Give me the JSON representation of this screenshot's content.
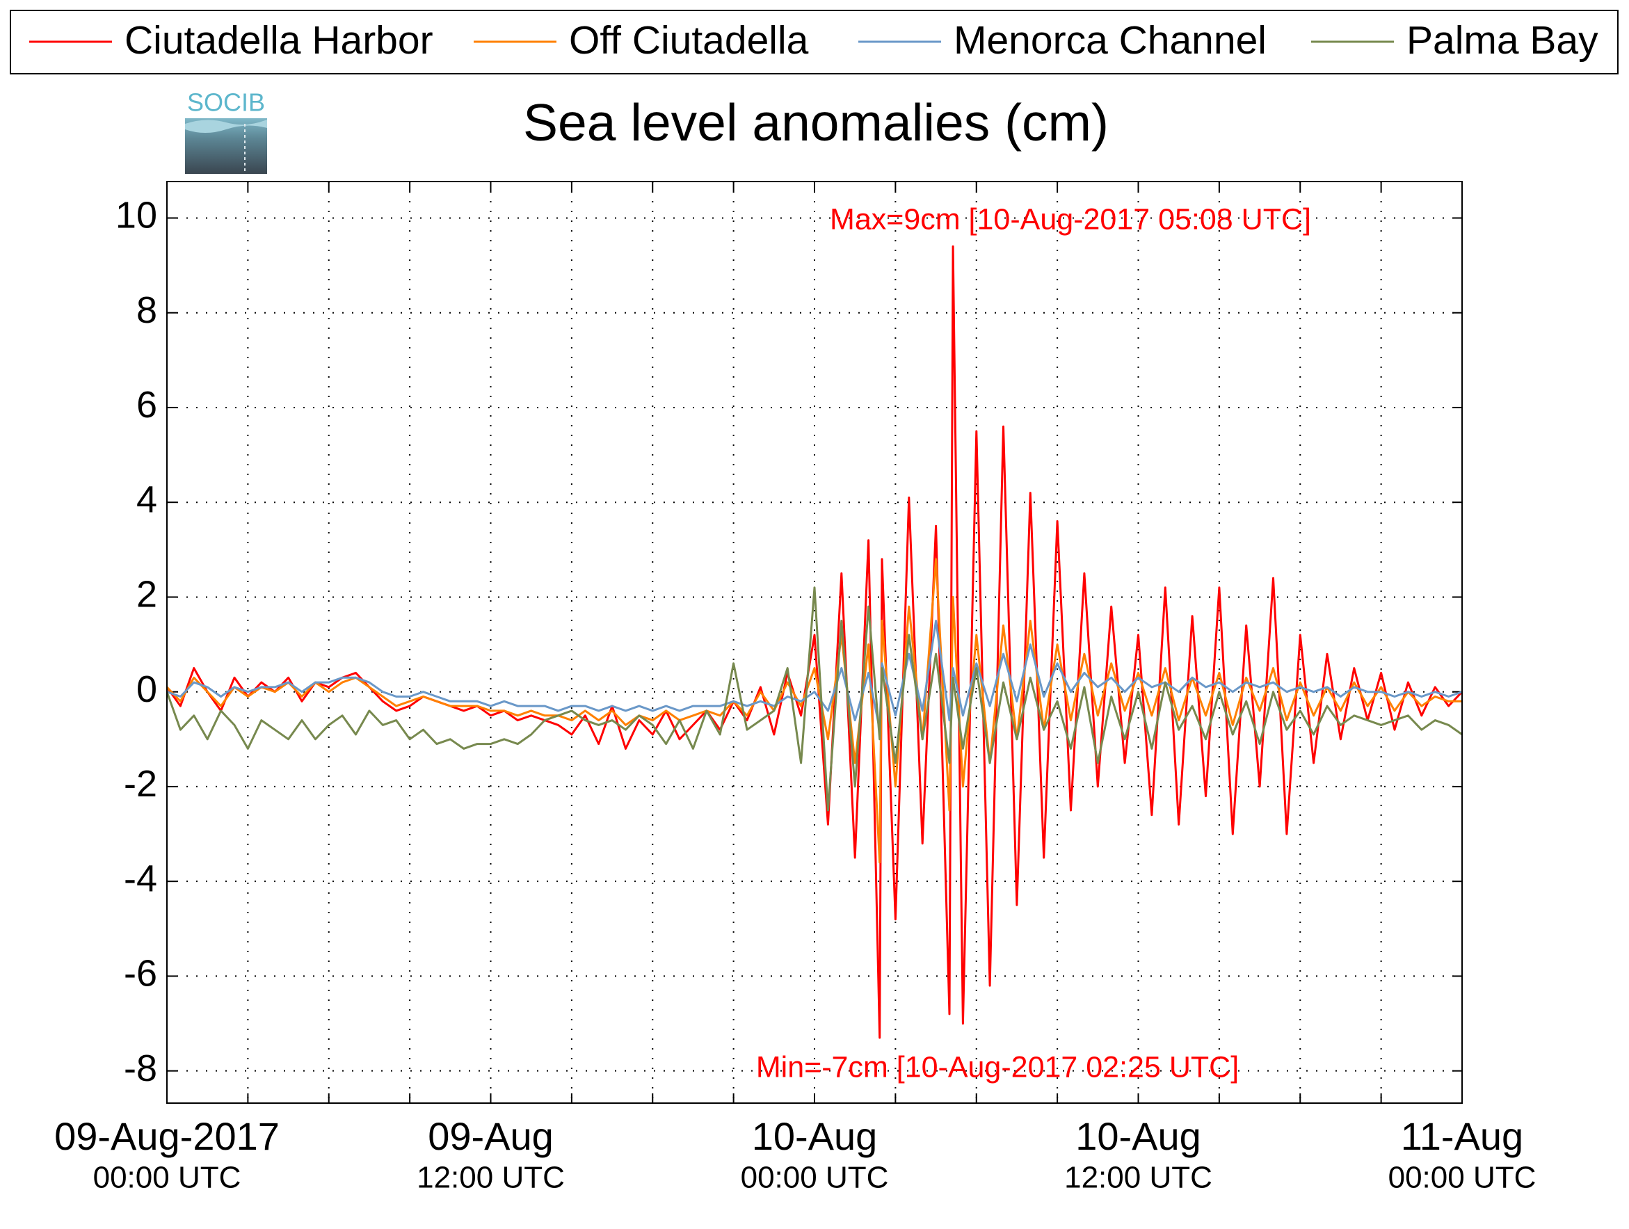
{
  "chart_data": {
    "type": "line",
    "title": "Sea level anomalies (cm)",
    "logo": "SOCIB",
    "annotations": [
      "Max=9cm [10-Aug-2017 05:08 UTC]",
      "Min=-7cm [10-Aug-2017 02:25 UTC]"
    ],
    "annotation_color": "#ff0000",
    "grid": true,
    "legend": "top",
    "xlim": [
      "2017-08-09T00:00",
      "2017-08-11T00:00"
    ],
    "xticks": [
      {
        "value": "2017-08-09T00:00",
        "label": "09-Aug-2017",
        "sublabel": "00:00 UTC"
      },
      "2017-08-09T03:00",
      "2017-08-09T06:00",
      "2017-08-09T09:00",
      {
        "value": "2017-08-09T12:00",
        "label": "09-Aug",
        "sublabel": "12:00 UTC"
      },
      "2017-08-09T15:00",
      "2017-08-09T18:00",
      "2017-08-09T21:00",
      {
        "value": "2017-08-10T00:00",
        "label": "10-Aug",
        "sublabel": "00:00 UTC"
      },
      "2017-08-10T03:00",
      "2017-08-10T06:00",
      "2017-08-10T09:00",
      {
        "value": "2017-08-10T12:00",
        "label": "10-Aug",
        "sublabel": "12:00 UTC"
      },
      "2017-08-10T15:00",
      "2017-08-10T18:00",
      "2017-08-10T21:00",
      {
        "value": "2017-08-11T00:00",
        "label": "11-Aug",
        "sublabel": "00:00 UTC"
      }
    ],
    "ylim": [
      -8.68,
      10.77
    ],
    "yticks": [
      -8,
      -6,
      -4,
      -2,
      0,
      2,
      4,
      6,
      8,
      10
    ],
    "x": [
      "2017-08-09T00:00",
      "2017-08-09T00:30",
      "2017-08-09T01:00",
      "2017-08-09T01:30",
      "2017-08-09T02:00",
      "2017-08-09T02:30",
      "2017-08-09T03:00",
      "2017-08-09T03:30",
      "2017-08-09T04:00",
      "2017-08-09T04:30",
      "2017-08-09T05:00",
      "2017-08-09T05:30",
      "2017-08-09T06:00",
      "2017-08-09T06:30",
      "2017-08-09T07:00",
      "2017-08-09T07:30",
      "2017-08-09T08:00",
      "2017-08-09T08:30",
      "2017-08-09T09:00",
      "2017-08-09T09:30",
      "2017-08-09T10:00",
      "2017-08-09T10:30",
      "2017-08-09T11:00",
      "2017-08-09T11:30",
      "2017-08-09T12:00",
      "2017-08-09T12:30",
      "2017-08-09T13:00",
      "2017-08-09T13:30",
      "2017-08-09T14:00",
      "2017-08-09T14:30",
      "2017-08-09T15:00",
      "2017-08-09T15:30",
      "2017-08-09T16:00",
      "2017-08-09T16:30",
      "2017-08-09T17:00",
      "2017-08-09T17:30",
      "2017-08-09T18:00",
      "2017-08-09T18:30",
      "2017-08-09T19:00",
      "2017-08-09T19:30",
      "2017-08-09T20:00",
      "2017-08-09T20:30",
      "2017-08-09T21:00",
      "2017-08-09T21:30",
      "2017-08-09T22:00",
      "2017-08-09T22:30",
      "2017-08-09T23:00",
      "2017-08-09T23:30",
      "2017-08-10T00:00",
      "2017-08-10T00:30",
      "2017-08-10T01:00",
      "2017-08-10T01:30",
      "2017-08-10T02:00",
      "2017-08-10T02:25",
      "2017-08-10T02:30",
      "2017-08-10T03:00",
      "2017-08-10T03:30",
      "2017-08-10T04:00",
      "2017-08-10T04:30",
      "2017-08-10T05:00",
      "2017-08-10T05:08",
      "2017-08-10T05:30",
      "2017-08-10T06:00",
      "2017-08-10T06:30",
      "2017-08-10T07:00",
      "2017-08-10T07:30",
      "2017-08-10T08:00",
      "2017-08-10T08:30",
      "2017-08-10T09:00",
      "2017-08-10T09:30",
      "2017-08-10T10:00",
      "2017-08-10T10:30",
      "2017-08-10T11:00",
      "2017-08-10T11:30",
      "2017-08-10T12:00",
      "2017-08-10T12:30",
      "2017-08-10T13:00",
      "2017-08-10T13:30",
      "2017-08-10T14:00",
      "2017-08-10T14:30",
      "2017-08-10T15:00",
      "2017-08-10T15:30",
      "2017-08-10T16:00",
      "2017-08-10T16:30",
      "2017-08-10T17:00",
      "2017-08-10T17:30",
      "2017-08-10T18:00",
      "2017-08-10T18:30",
      "2017-08-10T19:00",
      "2017-08-10T19:30",
      "2017-08-10T20:00",
      "2017-08-10T20:30",
      "2017-08-10T21:00",
      "2017-08-10T21:30",
      "2017-08-10T22:00",
      "2017-08-10T22:30",
      "2017-08-10T23:00",
      "2017-08-10T23:30",
      "2017-08-11T00:00"
    ],
    "series": [
      {
        "name": "Ciutadella Harbor",
        "color": "#ff0000",
        "values": [
          0.1,
          -0.3,
          0.5,
          0,
          -0.4,
          0.3,
          -0.1,
          0.2,
          0,
          0.3,
          -0.2,
          0.2,
          0.1,
          0.3,
          0.4,
          0.1,
          -0.2,
          -0.4,
          -0.3,
          -0.1,
          -0.2,
          -0.3,
          -0.4,
          -0.3,
          -0.5,
          -0.4,
          -0.6,
          -0.5,
          -0.6,
          -0.7,
          -0.9,
          -0.5,
          -1.1,
          -0.3,
          -1.2,
          -0.6,
          -0.9,
          -0.4,
          -1.0,
          -0.7,
          -0.4,
          -0.8,
          -0.2,
          -0.6,
          0.1,
          -0.9,
          0.4,
          -0.5,
          1.2,
          -2.8,
          2.5,
          -3.5,
          3.2,
          -7.3,
          2.8,
          -4.8,
          4.1,
          -3.2,
          3.5,
          -6.8,
          9.4,
          -7.0,
          5.5,
          -6.2,
          5.6,
          -4.5,
          4.2,
          -3.5,
          3.6,
          -2.5,
          2.5,
          -2.0,
          1.8,
          -1.5,
          1.2,
          -2.6,
          2.2,
          -2.8,
          1.6,
          -2.2,
          2.2,
          -3.0,
          1.4,
          -2.0,
          2.4,
          -3.0,
          1.2,
          -1.5,
          0.8,
          -1.0,
          0.5,
          -0.6,
          0.4,
          -0.8,
          0.2,
          -0.5,
          0.1,
          -0.3,
          0
        ]
      },
      {
        "name": "Off Ciutadella",
        "color": "#ff8000",
        "values": [
          0.1,
          -0.2,
          0.3,
          0,
          -0.3,
          0.1,
          -0.1,
          0.1,
          0,
          0.2,
          -0.1,
          0.2,
          0,
          0.2,
          0.3,
          0.1,
          -0.1,
          -0.3,
          -0.2,
          -0.1,
          -0.2,
          -0.3,
          -0.3,
          -0.3,
          -0.4,
          -0.4,
          -0.5,
          -0.4,
          -0.5,
          -0.5,
          -0.6,
          -0.4,
          -0.6,
          -0.4,
          -0.7,
          -0.5,
          -0.6,
          -0.4,
          -0.6,
          -0.5,
          -0.4,
          -0.5,
          -0.2,
          -0.5,
          0,
          -0.4,
          0.2,
          -0.3,
          0.5,
          -1.0,
          1.2,
          -1.5,
          1.0,
          -3.6,
          1.5,
          -2.0,
          1.8,
          -1.0,
          2.8,
          -2.5,
          2.0,
          -2.0,
          1.2,
          -1.5,
          1.4,
          -1.0,
          1.5,
          -0.8,
          1.0,
          -0.6,
          0.8,
          -0.5,
          0.6,
          -0.4,
          0.4,
          -0.5,
          0.5,
          -0.6,
          0.3,
          -0.5,
          0.4,
          -0.7,
          0.3,
          -0.4,
          0.5,
          -0.6,
          0.2,
          -0.5,
          0.1,
          -0.4,
          0.2,
          -0.3,
          0.1,
          -0.4,
          0,
          -0.3,
          -0.1,
          -0.2,
          -0.2
        ]
      },
      {
        "name": "Menorca Channel",
        "color": "#6a98c8",
        "values": [
          0,
          -0.1,
          0.2,
          0.1,
          -0.1,
          0.1,
          0,
          0.1,
          0.1,
          0.2,
          0,
          0.2,
          0.2,
          0.3,
          0.3,
          0.2,
          0,
          -0.1,
          -0.1,
          0,
          -0.1,
          -0.2,
          -0.2,
          -0.2,
          -0.3,
          -0.2,
          -0.3,
          -0.3,
          -0.3,
          -0.4,
          -0.3,
          -0.3,
          -0.4,
          -0.3,
          -0.4,
          -0.3,
          -0.4,
          -0.3,
          -0.4,
          -0.3,
          -0.3,
          -0.3,
          -0.2,
          -0.3,
          -0.2,
          -0.3,
          -0.1,
          -0.2,
          0,
          -0.4,
          0.5,
          -0.6,
          0.4,
          -0.8,
          0.6,
          -0.5,
          0.8,
          -0.4,
          1.5,
          -0.6,
          0.5,
          -0.5,
          0.6,
          -0.3,
          0.8,
          -0.2,
          1.0,
          -0.1,
          0.6,
          0,
          0.4,
          0.1,
          0.3,
          0,
          0.3,
          0.1,
          0.2,
          0,
          0.3,
          0.1,
          0.2,
          0,
          0.2,
          0.1,
          0.2,
          0,
          0.1,
          0,
          0.1,
          -0.1,
          0.1,
          0,
          0,
          -0.1,
          0,
          -0.1,
          0,
          -0.1,
          0
        ]
      },
      {
        "name": "Palma Bay",
        "color": "#77894e",
        "values": [
          0,
          -0.8,
          -0.5,
          -1.0,
          -0.4,
          -0.7,
          -1.2,
          -0.6,
          -0.8,
          -1.0,
          -0.6,
          -1.0,
          -0.7,
          -0.5,
          -0.9,
          -0.4,
          -0.7,
          -0.6,
          -1.0,
          -0.8,
          -1.1,
          -1.0,
          -1.2,
          -1.1,
          -1.1,
          -1.0,
          -1.1,
          -0.9,
          -0.6,
          -0.5,
          -0.4,
          -0.6,
          -0.7,
          -0.6,
          -0.8,
          -0.5,
          -0.7,
          -1.1,
          -0.6,
          -1.2,
          -0.4,
          -0.9,
          0.6,
          -0.8,
          -0.6,
          -0.4,
          0.5,
          -1.5,
          2.2,
          -2.5,
          1.5,
          -2.0,
          1.8,
          -1.0,
          0.5,
          -1.5,
          1.2,
          -1.0,
          0.8,
          -1.5,
          0.3,
          -1.2,
          0.5,
          -1.5,
          0.2,
          -1.0,
          0.3,
          -0.8,
          -0.2,
          -1.2,
          0.1,
          -1.5,
          -0.1,
          -1.0,
          0,
          -1.2,
          0.2,
          -0.8,
          -0.3,
          -1.0,
          0,
          -0.9,
          -0.2,
          -1.1,
          0,
          -0.8,
          -0.4,
          -0.9,
          -0.3,
          -0.7,
          -0.5,
          -0.6,
          -0.7,
          -0.6,
          -0.5,
          -0.8,
          -0.6,
          -0.7,
          -0.9
        ]
      }
    ]
  }
}
